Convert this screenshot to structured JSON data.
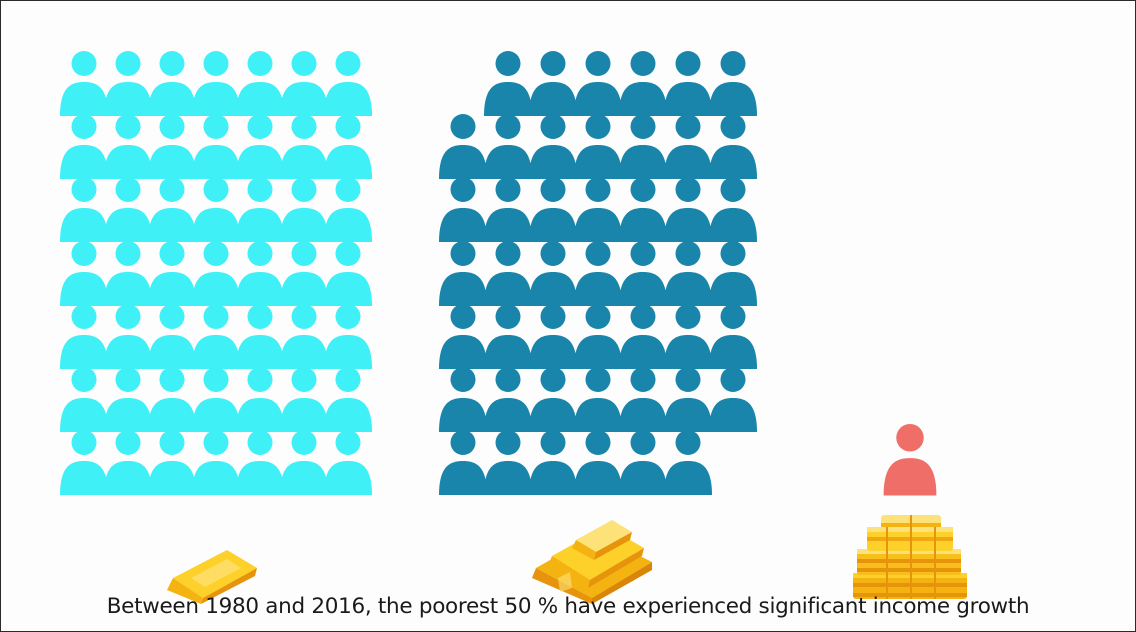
{
  "caption": "Between 1980 and 2016, the poorest 50 % have experienced significant income growth",
  "groups": [
    {
      "name": "poorest-50",
      "color": "#40f0f7"
    },
    {
      "name": "middle-40",
      "color": "#1a85aa"
    },
    {
      "name": "top-1",
      "color": "#ef6f68"
    }
  ],
  "colors": {
    "gold_light": "#fdd02a",
    "gold_mid": "#f5b312",
    "gold_dark": "#e6940c",
    "background": "#fdfdfd"
  },
  "icons": [
    "person-icon",
    "gold-bar-icon",
    "gold-stack-icon",
    "gold-pile-icon"
  ]
}
